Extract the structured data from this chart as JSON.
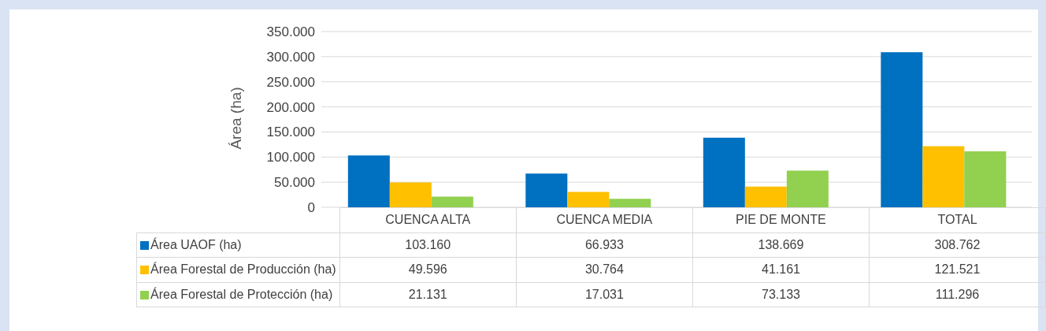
{
  "chart_data": {
    "type": "bar",
    "ylabel": "Área (ha)",
    "categories": [
      "CUENCA ALTA",
      "CUENCA MEDIA",
      "PIE DE MONTE",
      "TOTAL"
    ],
    "series": [
      {
        "name": "Área UAOF (ha)",
        "color": "#0070c0",
        "values": [
          103160,
          66933,
          138669,
          308762
        ],
        "value_labels": [
          "103.160",
          "66.933",
          "138.669",
          "308.762"
        ]
      },
      {
        "name": "Área Forestal de Producción (ha)",
        "color": "#ffc000",
        "values": [
          49596,
          30764,
          41161,
          121521
        ],
        "value_labels": [
          "49.596",
          "30.764",
          "41.161",
          "121.521"
        ]
      },
      {
        "name": "Área Forestal de Protección (ha)",
        "color": "#92d050",
        "values": [
          21131,
          17031,
          73133,
          111296
        ],
        "value_labels": [
          "21.131",
          "17.031",
          "73.133",
          "111.296"
        ]
      }
    ],
    "ylim": [
      0,
      350000
    ],
    "yticks": [
      0,
      {
        "value": 50000,
        "label": "50.000"
      },
      {
        "value": 100000,
        "label": "100.000"
      },
      {
        "value": 150000,
        "label": "150.000"
      },
      {
        "value": 200000,
        "label": "200.000"
      },
      {
        "value": 250000,
        "label": "250.000"
      },
      {
        "value": 300000,
        "label": "300.000"
      },
      {
        "value": 350000,
        "label": "350.000"
      }
    ],
    "grid": "y",
    "legend": "bottom left"
  }
}
